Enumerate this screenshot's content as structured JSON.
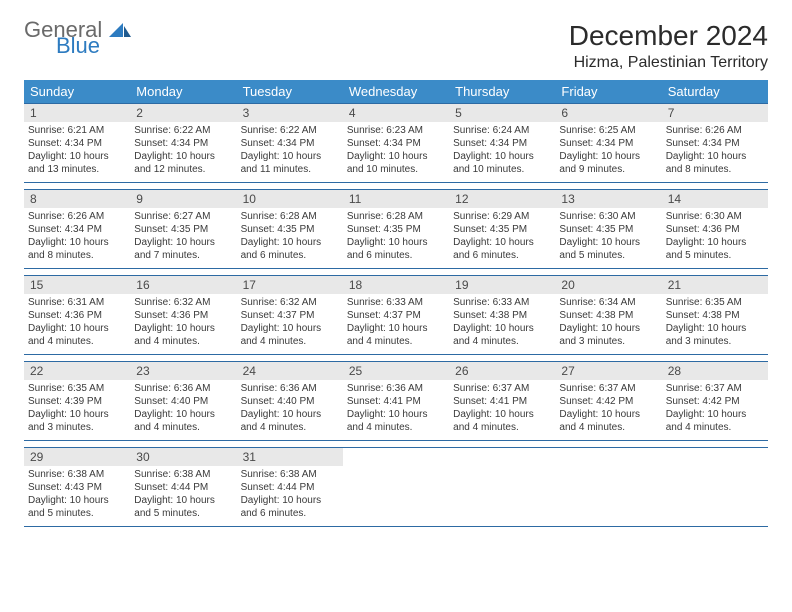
{
  "brand": {
    "part1": "General",
    "part2": "Blue"
  },
  "title": "December 2024",
  "location": "Hizma, Palestinian Territory",
  "colors": {
    "header_bg": "#3b8bc8",
    "header_text": "#ffffff",
    "daynum_bg": "#e8e8e8",
    "week_border": "#2d6aa3",
    "body_text": "#3a3a3a",
    "logo_gray": "#6a6a6a",
    "logo_blue": "#2d7bc0"
  },
  "weekdays": [
    "Sunday",
    "Monday",
    "Tuesday",
    "Wednesday",
    "Thursday",
    "Friday",
    "Saturday"
  ],
  "weeks": [
    [
      {
        "n": "1",
        "sunrise": "Sunrise: 6:21 AM",
        "sunset": "Sunset: 4:34 PM",
        "daylight": "Daylight: 10 hours and 13 minutes."
      },
      {
        "n": "2",
        "sunrise": "Sunrise: 6:22 AM",
        "sunset": "Sunset: 4:34 PM",
        "daylight": "Daylight: 10 hours and 12 minutes."
      },
      {
        "n": "3",
        "sunrise": "Sunrise: 6:22 AM",
        "sunset": "Sunset: 4:34 PM",
        "daylight": "Daylight: 10 hours and 11 minutes."
      },
      {
        "n": "4",
        "sunrise": "Sunrise: 6:23 AM",
        "sunset": "Sunset: 4:34 PM",
        "daylight": "Daylight: 10 hours and 10 minutes."
      },
      {
        "n": "5",
        "sunrise": "Sunrise: 6:24 AM",
        "sunset": "Sunset: 4:34 PM",
        "daylight": "Daylight: 10 hours and 10 minutes."
      },
      {
        "n": "6",
        "sunrise": "Sunrise: 6:25 AM",
        "sunset": "Sunset: 4:34 PM",
        "daylight": "Daylight: 10 hours and 9 minutes."
      },
      {
        "n": "7",
        "sunrise": "Sunrise: 6:26 AM",
        "sunset": "Sunset: 4:34 PM",
        "daylight": "Daylight: 10 hours and 8 minutes."
      }
    ],
    [
      {
        "n": "8",
        "sunrise": "Sunrise: 6:26 AM",
        "sunset": "Sunset: 4:34 PM",
        "daylight": "Daylight: 10 hours and 8 minutes."
      },
      {
        "n": "9",
        "sunrise": "Sunrise: 6:27 AM",
        "sunset": "Sunset: 4:35 PM",
        "daylight": "Daylight: 10 hours and 7 minutes."
      },
      {
        "n": "10",
        "sunrise": "Sunrise: 6:28 AM",
        "sunset": "Sunset: 4:35 PM",
        "daylight": "Daylight: 10 hours and 6 minutes."
      },
      {
        "n": "11",
        "sunrise": "Sunrise: 6:28 AM",
        "sunset": "Sunset: 4:35 PM",
        "daylight": "Daylight: 10 hours and 6 minutes."
      },
      {
        "n": "12",
        "sunrise": "Sunrise: 6:29 AM",
        "sunset": "Sunset: 4:35 PM",
        "daylight": "Daylight: 10 hours and 6 minutes."
      },
      {
        "n": "13",
        "sunrise": "Sunrise: 6:30 AM",
        "sunset": "Sunset: 4:35 PM",
        "daylight": "Daylight: 10 hours and 5 minutes."
      },
      {
        "n": "14",
        "sunrise": "Sunrise: 6:30 AM",
        "sunset": "Sunset: 4:36 PM",
        "daylight": "Daylight: 10 hours and 5 minutes."
      }
    ],
    [
      {
        "n": "15",
        "sunrise": "Sunrise: 6:31 AM",
        "sunset": "Sunset: 4:36 PM",
        "daylight": "Daylight: 10 hours and 4 minutes."
      },
      {
        "n": "16",
        "sunrise": "Sunrise: 6:32 AM",
        "sunset": "Sunset: 4:36 PM",
        "daylight": "Daylight: 10 hours and 4 minutes."
      },
      {
        "n": "17",
        "sunrise": "Sunrise: 6:32 AM",
        "sunset": "Sunset: 4:37 PM",
        "daylight": "Daylight: 10 hours and 4 minutes."
      },
      {
        "n": "18",
        "sunrise": "Sunrise: 6:33 AM",
        "sunset": "Sunset: 4:37 PM",
        "daylight": "Daylight: 10 hours and 4 minutes."
      },
      {
        "n": "19",
        "sunrise": "Sunrise: 6:33 AM",
        "sunset": "Sunset: 4:38 PM",
        "daylight": "Daylight: 10 hours and 4 minutes."
      },
      {
        "n": "20",
        "sunrise": "Sunrise: 6:34 AM",
        "sunset": "Sunset: 4:38 PM",
        "daylight": "Daylight: 10 hours and 3 minutes."
      },
      {
        "n": "21",
        "sunrise": "Sunrise: 6:35 AM",
        "sunset": "Sunset: 4:38 PM",
        "daylight": "Daylight: 10 hours and 3 minutes."
      }
    ],
    [
      {
        "n": "22",
        "sunrise": "Sunrise: 6:35 AM",
        "sunset": "Sunset: 4:39 PM",
        "daylight": "Daylight: 10 hours and 3 minutes."
      },
      {
        "n": "23",
        "sunrise": "Sunrise: 6:36 AM",
        "sunset": "Sunset: 4:40 PM",
        "daylight": "Daylight: 10 hours and 4 minutes."
      },
      {
        "n": "24",
        "sunrise": "Sunrise: 6:36 AM",
        "sunset": "Sunset: 4:40 PM",
        "daylight": "Daylight: 10 hours and 4 minutes."
      },
      {
        "n": "25",
        "sunrise": "Sunrise: 6:36 AM",
        "sunset": "Sunset: 4:41 PM",
        "daylight": "Daylight: 10 hours and 4 minutes."
      },
      {
        "n": "26",
        "sunrise": "Sunrise: 6:37 AM",
        "sunset": "Sunset: 4:41 PM",
        "daylight": "Daylight: 10 hours and 4 minutes."
      },
      {
        "n": "27",
        "sunrise": "Sunrise: 6:37 AM",
        "sunset": "Sunset: 4:42 PM",
        "daylight": "Daylight: 10 hours and 4 minutes."
      },
      {
        "n": "28",
        "sunrise": "Sunrise: 6:37 AM",
        "sunset": "Sunset: 4:42 PM",
        "daylight": "Daylight: 10 hours and 4 minutes."
      }
    ],
    [
      {
        "n": "29",
        "sunrise": "Sunrise: 6:38 AM",
        "sunset": "Sunset: 4:43 PM",
        "daylight": "Daylight: 10 hours and 5 minutes."
      },
      {
        "n": "30",
        "sunrise": "Sunrise: 6:38 AM",
        "sunset": "Sunset: 4:44 PM",
        "daylight": "Daylight: 10 hours and 5 minutes."
      },
      {
        "n": "31",
        "sunrise": "Sunrise: 6:38 AM",
        "sunset": "Sunset: 4:44 PM",
        "daylight": "Daylight: 10 hours and 6 minutes."
      },
      null,
      null,
      null,
      null
    ]
  ]
}
